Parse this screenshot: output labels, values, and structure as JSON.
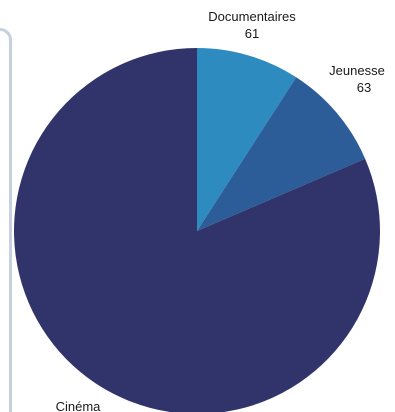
{
  "chart_data": {
    "type": "pie",
    "title": "",
    "slices": [
      {
        "label": "Documentaires",
        "value": 61,
        "value_label": "61",
        "color": "#2e8bbf"
      },
      {
        "label": "Jeunesse",
        "value": 63,
        "value_label": "63",
        "color": "#2c5d98"
      },
      {
        "label": "Cinéma",
        "value": 545,
        "value_label": "",
        "color": "#31346b"
      }
    ],
    "start_angle_deg": 0,
    "direction": "clockwise",
    "legend": "none"
  }
}
